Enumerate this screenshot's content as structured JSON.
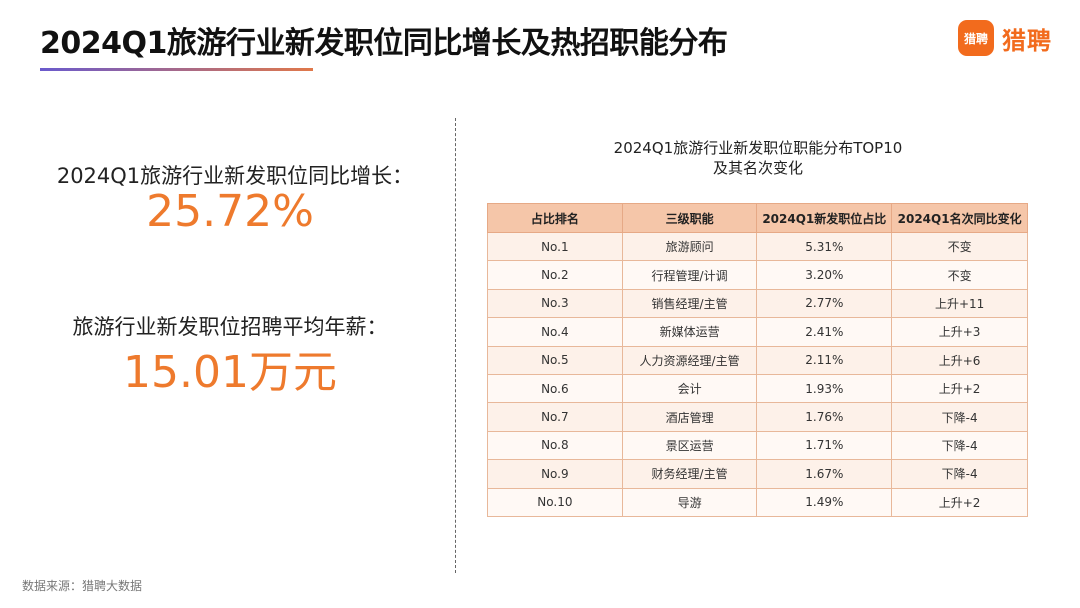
{
  "title": "2024Q1旅游行业新发职位同比增长及热招职能分布",
  "logo": {
    "badge": "猎聘",
    "text": "猎聘"
  },
  "stats": [
    {
      "label": "2024Q1旅游行业新发职位同比增长：",
      "value": "25.72%"
    },
    {
      "label": "旅游行业新发职位招聘平均年薪：",
      "value": "15.01万元"
    }
  ],
  "table": {
    "title_line1": "2024Q1旅游行业新发职位职能分布TOP10",
    "title_line2": "及其名次变化",
    "headers": [
      "占比排名",
      "三级职能",
      "2024Q1新发职位占比",
      "2024Q1名次同比变化"
    ],
    "rows": [
      [
        "No.1",
        "旅游顾问",
        "5.31%",
        "不变"
      ],
      [
        "No.2",
        "行程管理/计调",
        "3.20%",
        "不变"
      ],
      [
        "No.3",
        "销售经理/主管",
        "2.77%",
        "上升+11"
      ],
      [
        "No.4",
        "新媒体运营",
        "2.41%",
        "上升+3"
      ],
      [
        "No.5",
        "人力资源经理/主管",
        "2.11%",
        "上升+6"
      ],
      [
        "No.6",
        "会计",
        "1.93%",
        "上升+2"
      ],
      [
        "No.7",
        "酒店管理",
        "1.76%",
        "下降-4"
      ],
      [
        "No.8",
        "景区运营",
        "1.71%",
        "下降-4"
      ],
      [
        "No.9",
        "财务经理/主管",
        "1.67%",
        "下降-4"
      ],
      [
        "No.10",
        "导游",
        "1.49%",
        "上升+2"
      ]
    ]
  },
  "source": "数据来源：猎聘大数据",
  "colors": {
    "accent": "#ee7a2d",
    "brand": "#f26b1d",
    "header_bg": "#f5c6a9",
    "row_bg": "#fdf1e9"
  }
}
